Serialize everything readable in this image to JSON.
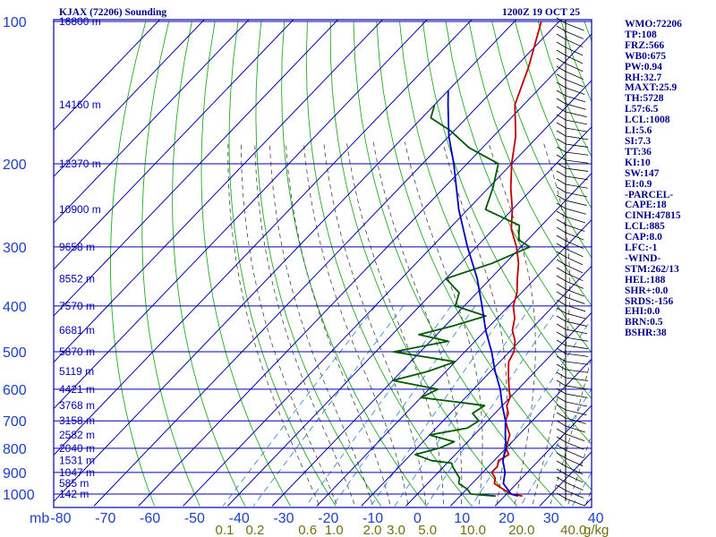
{
  "header": {
    "station": "KJAX (72206) Sounding",
    "time": "1200Z 19 OCT 25"
  },
  "chart_data": {
    "type": "line",
    "title": "KJAX (72206) Sounding",
    "subtitle": "1200Z 19 OCT 25",
    "xlabel": "",
    "ylabel": "mb",
    "temperature_ticks": [
      "-80",
      "-70",
      "-60",
      "-50",
      "-40",
      "-30",
      "-20",
      "-10",
      "0",
      "10",
      "20",
      "30",
      "40"
    ],
    "pressure_ticks": [
      "100",
      "200",
      "300",
      "400",
      "500",
      "600",
      "700",
      "800",
      "900",
      "1000"
    ],
    "mixing_ratio_ticks": [
      "0.1",
      "0.2",
      "0.6",
      "1.0",
      "2.0",
      "3.0",
      "5.0",
      "10.0",
      "20.0",
      "40.0"
    ],
    "mixing_ratio_unit": "g/kg",
    "height_labels": [
      {
        "p": 100,
        "label": "16800 m"
      },
      {
        "p": 150,
        "label": "14160 m"
      },
      {
        "p": 200,
        "label": "12370 m"
      },
      {
        "p": 250,
        "label": "10900 m"
      },
      {
        "p": 300,
        "label": "9658 m"
      },
      {
        "p": 350,
        "label": "8552 m"
      },
      {
        "p": 400,
        "label": "7570 m"
      },
      {
        "p": 450,
        "label": "6681 m"
      },
      {
        "p": 500,
        "label": "5870 m"
      },
      {
        "p": 550,
        "label": "5119 m"
      },
      {
        "p": 600,
        "label": "4421 m"
      },
      {
        "p": 650,
        "label": "3768 m"
      },
      {
        "p": 700,
        "label": "3158 m"
      },
      {
        "p": 750,
        "label": "2582 m"
      },
      {
        "p": 800,
        "label": "2040 m"
      },
      {
        "p": 850,
        "label": "1531 m"
      },
      {
        "p": 900,
        "label": "1047 m"
      },
      {
        "p": 950,
        "label": "585 m"
      },
      {
        "p": 1000,
        "label": "142 m"
      }
    ],
    "series": [
      {
        "name": "temperature",
        "color": "#c00000",
        "points": [
          [
            1010,
            24
          ],
          [
            1000,
            21
          ],
          [
            975,
            18
          ],
          [
            950,
            15
          ],
          [
            925,
            14
          ],
          [
            900,
            12
          ],
          [
            875,
            12
          ],
          [
            850,
            11
          ],
          [
            825,
            12
          ],
          [
            800,
            10
          ],
          [
            775,
            9
          ],
          [
            750,
            8
          ],
          [
            725,
            6
          ],
          [
            700,
            4
          ],
          [
            675,
            3
          ],
          [
            650,
            1
          ],
          [
            625,
            0
          ],
          [
            600,
            -2
          ],
          [
            575,
            -4
          ],
          [
            550,
            -6
          ],
          [
            525,
            -8
          ],
          [
            500,
            -9
          ],
          [
            475,
            -11
          ],
          [
            450,
            -14
          ],
          [
            425,
            -16
          ],
          [
            400,
            -19
          ],
          [
            375,
            -21
          ],
          [
            350,
            -24
          ],
          [
            325,
            -27
          ],
          [
            300,
            -31
          ],
          [
            275,
            -36
          ],
          [
            250,
            -40
          ],
          [
            225,
            -45
          ],
          [
            200,
            -50
          ],
          [
            175,
            -55
          ],
          [
            150,
            -62
          ],
          [
            125,
            -67
          ],
          [
            110,
            -71
          ],
          [
            100,
            -74
          ]
        ]
      },
      {
        "name": "dewpoint",
        "color": "#005a00",
        "points": [
          [
            1010,
            18
          ],
          [
            1000,
            12
          ],
          [
            975,
            10
          ],
          [
            950,
            7
          ],
          [
            925,
            6
          ],
          [
            900,
            4
          ],
          [
            875,
            2
          ],
          [
            860,
            1
          ],
          [
            850,
            -4
          ],
          [
            825,
            -9
          ],
          [
            800,
            -5
          ],
          [
            775,
            -3
          ],
          [
            750,
            -10
          ],
          [
            725,
            -3
          ],
          [
            700,
            -2
          ],
          [
            675,
            -5
          ],
          [
            650,
            -4
          ],
          [
            640,
            -10
          ],
          [
            625,
            -20
          ],
          [
            600,
            -18
          ],
          [
            575,
            -30
          ],
          [
            550,
            -24
          ],
          [
            525,
            -20
          ],
          [
            500,
            -36
          ],
          [
            475,
            -26
          ],
          [
            460,
            -34
          ],
          [
            440,
            -28
          ],
          [
            420,
            -23
          ],
          [
            400,
            -32
          ],
          [
            375,
            -34
          ],
          [
            350,
            -40
          ],
          [
            325,
            -33
          ],
          [
            300,
            -28
          ],
          [
            290,
            -32
          ],
          [
            270,
            -35
          ],
          [
            250,
            -46
          ],
          [
            225,
            -49
          ],
          [
            200,
            -53
          ],
          [
            185,
            -63
          ],
          [
            170,
            -71
          ],
          [
            160,
            -78
          ],
          [
            150,
            -80
          ]
        ]
      },
      {
        "name": "parcel",
        "color": "#0000c0",
        "points": [
          [
            1010,
            23
          ],
          [
            1000,
            21
          ],
          [
            950,
            17
          ],
          [
            900,
            15
          ],
          [
            850,
            12
          ],
          [
            800,
            10
          ],
          [
            750,
            7
          ],
          [
            700,
            4
          ],
          [
            650,
            0
          ],
          [
            600,
            -4
          ],
          [
            550,
            -9
          ],
          [
            500,
            -14
          ],
          [
            450,
            -20
          ],
          [
            400,
            -26
          ],
          [
            350,
            -33
          ],
          [
            300,
            -42
          ],
          [
            250,
            -52
          ],
          [
            200,
            -63
          ],
          [
            175,
            -70
          ],
          [
            150,
            -77
          ],
          [
            140,
            -80
          ]
        ]
      }
    ],
    "axes": {
      "temperature_range_c": [
        -80,
        40
      ],
      "pressure_range_mb": [
        100,
        1050
      ],
      "skew": "skew-T log-p",
      "grid": true
    }
  },
  "indices": [
    "WMO:72206",
    "TP:108",
    "FRZ:566",
    "WB0:675",
    "PW:0.94",
    "RH:32.7",
    "MAXT:25.9",
    "TH:5728",
    "L57:6.5",
    "LCL:1008",
    "LI:5.6",
    "SI:7.3",
    "TT:36",
    "KI:10",
    "SW:147",
    "EI:0.9",
    "-PARCEL-",
    "CAPE:18",
    "CINH:47815",
    "LCL:885",
    "CAP:8.0",
    "LFC:-1",
    "-WIND-",
    "STM:262/13",
    "HEL:188",
    "SHR+:0.0",
    "SRDS:-156",
    "EHI:0.0",
    "BRN:0.5",
    "BSHR:38"
  ],
  "colors": {
    "grid_blue": "#0000b0",
    "axis_label_blue": "#1e40c8",
    "dry_adiabat": "#22aa22",
    "moist_adiabat": "#444444",
    "mixing_ratio": "#2a7fd0",
    "mixing_label": "#707010"
  }
}
